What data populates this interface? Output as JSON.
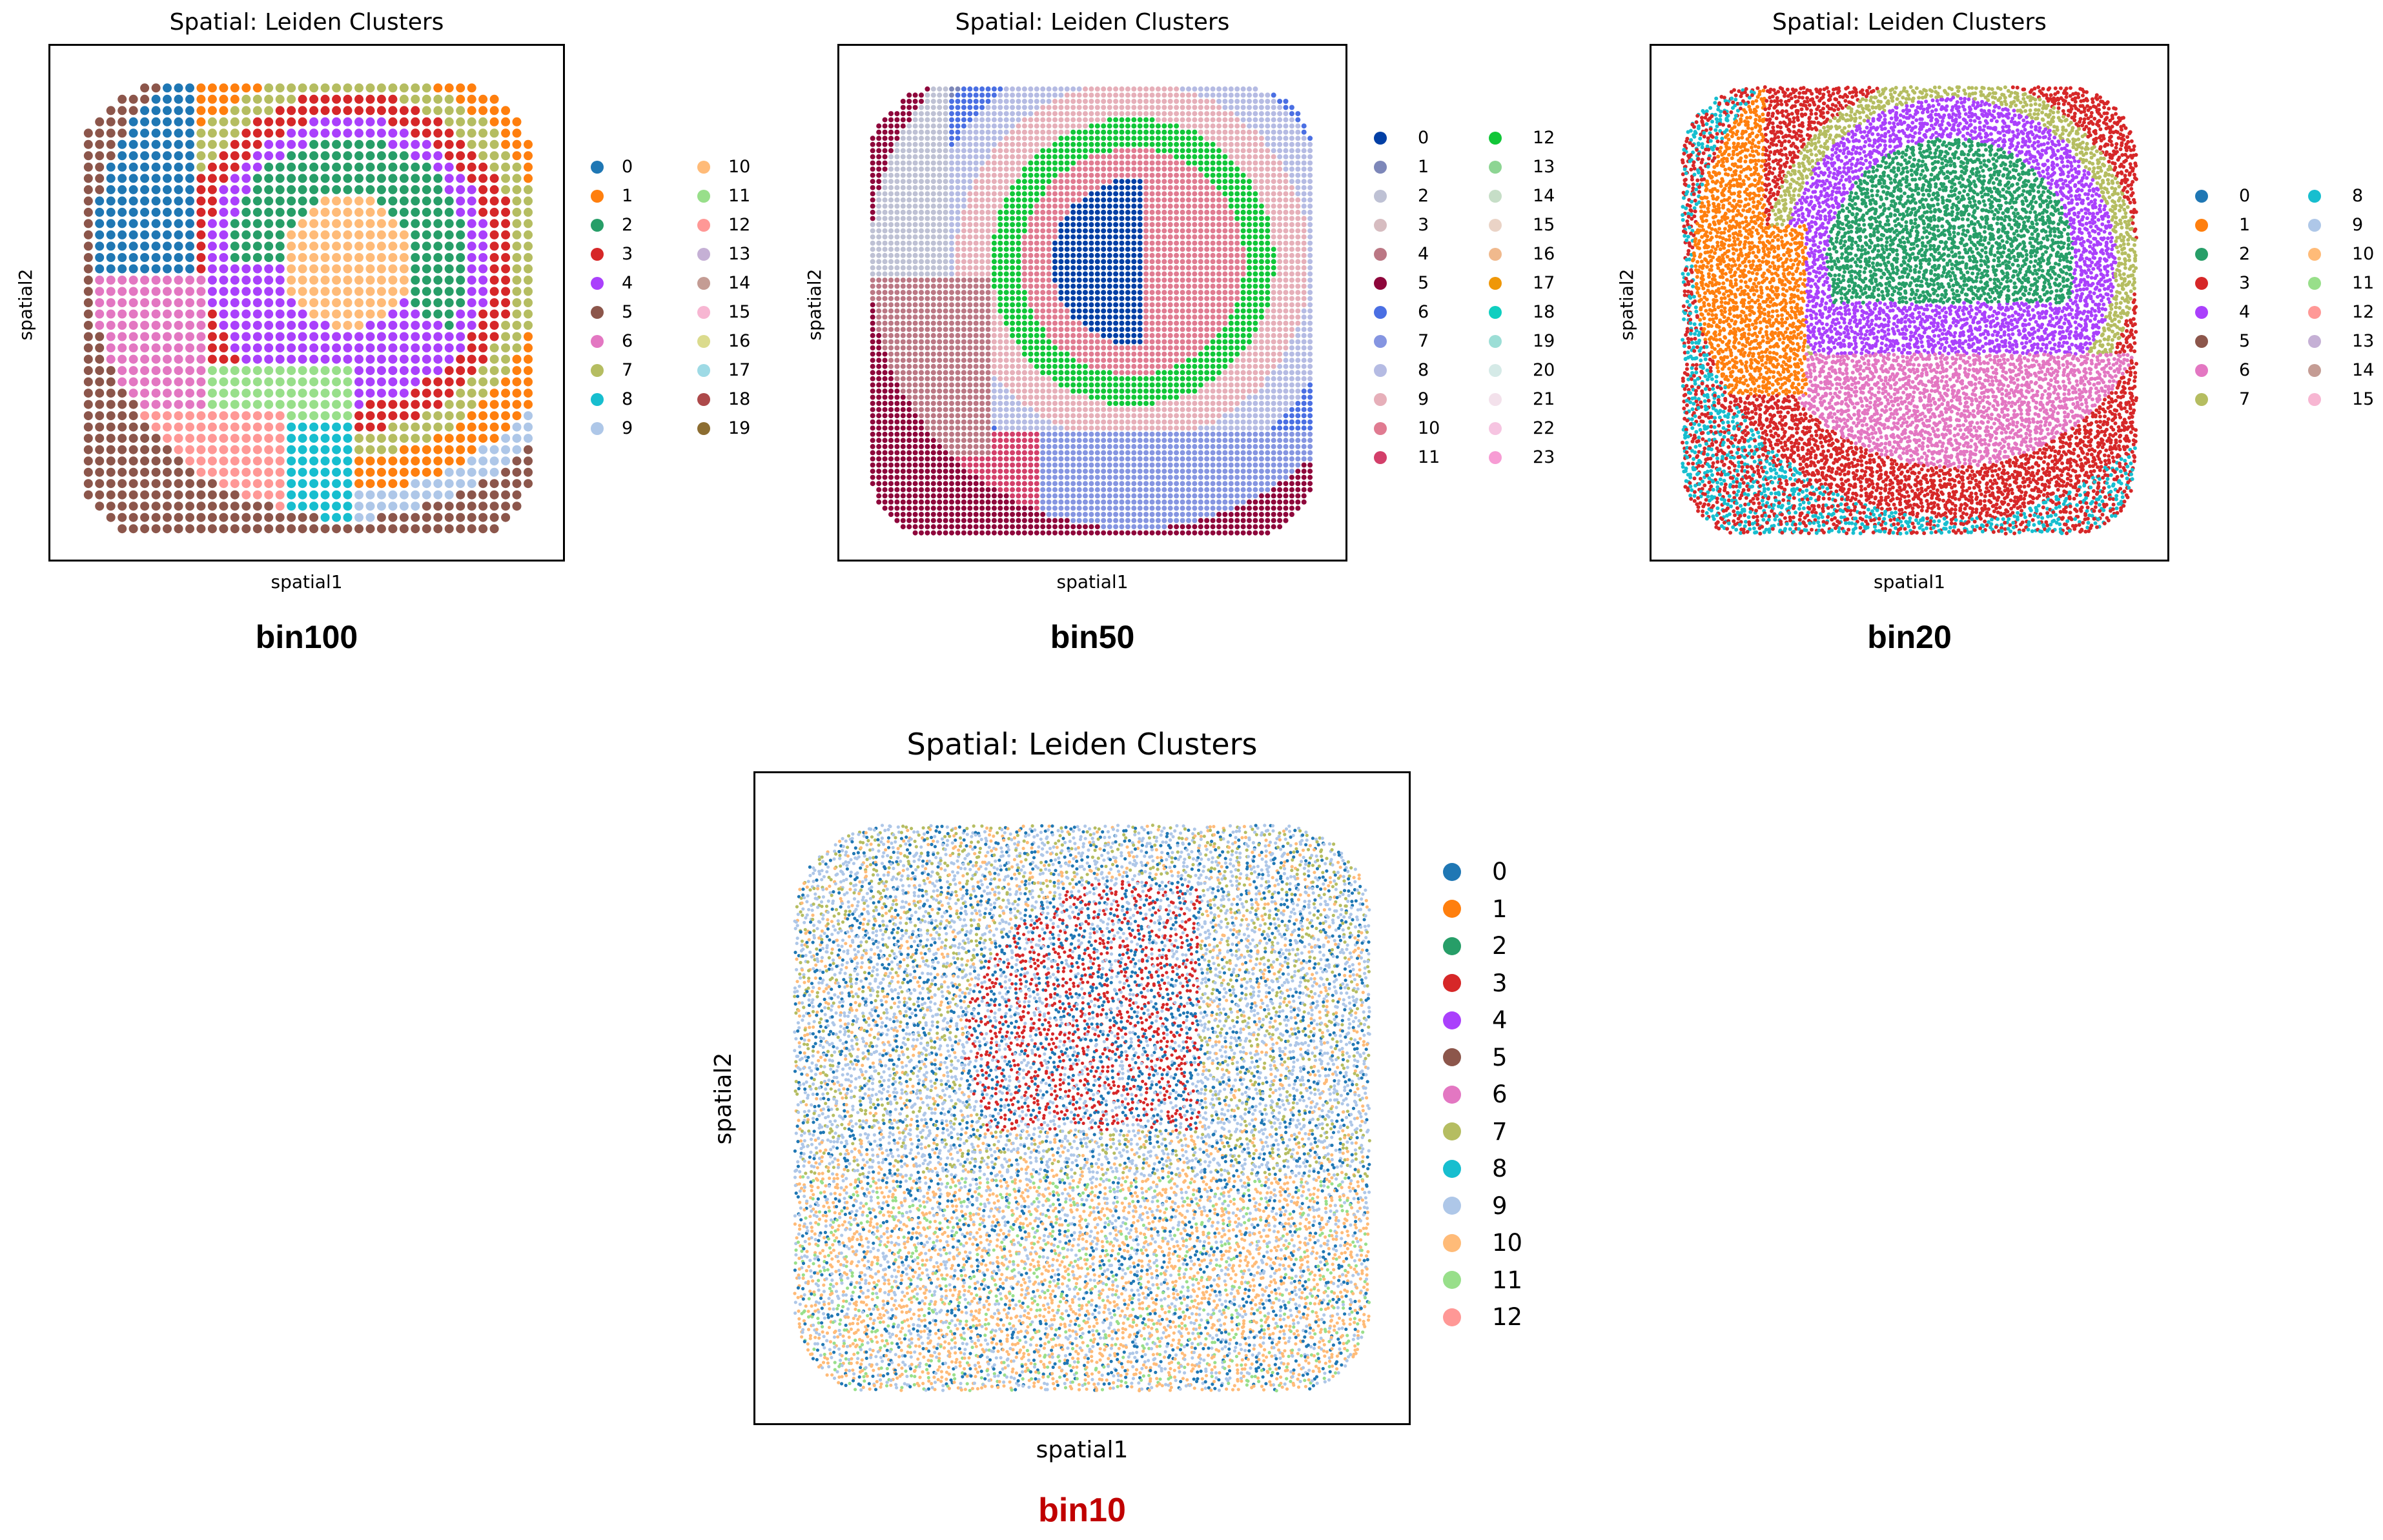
{
  "chart_data": [
    {
      "type": "scatter",
      "title": "Spatial: Leiden Clusters",
      "xlabel": "spatial1",
      "ylabel": "spatial2",
      "caption": "bin100",
      "legend": [
        "0",
        "1",
        "2",
        "3",
        "4",
        "5",
        "6",
        "7",
        "8",
        "9",
        "10",
        "11",
        "12",
        "13",
        "14",
        "15",
        "16",
        "17",
        "18",
        "19"
      ],
      "colors": [
        "#1f77b4",
        "#ff7f0e",
        "#279e68",
        "#d62728",
        "#aa40fc",
        "#8c564b",
        "#e377c2",
        "#b5bd61",
        "#17becf",
        "#aec7e8",
        "#ffbb78",
        "#98df8a",
        "#ff9896",
        "#c5b0d5",
        "#c49c94",
        "#f7b6d2",
        "#dbdb8d",
        "#9edae5",
        "#ad494a",
        "#8c6d31"
      ]
    },
    {
      "type": "scatter",
      "title": "Spatial: Leiden Clusters",
      "xlabel": "spatial1",
      "ylabel": "spatial2",
      "caption": "bin50",
      "legend": [
        "0",
        "1",
        "2",
        "3",
        "4",
        "5",
        "6",
        "7",
        "8",
        "9",
        "10",
        "11",
        "12",
        "13",
        "14",
        "15",
        "16",
        "17",
        "18",
        "19",
        "20",
        "21",
        "22",
        "23"
      ],
      "colors": [
        "#023fa5",
        "#7d87b9",
        "#bec1d4",
        "#d6bcc0",
        "#bb7784",
        "#8e063b",
        "#4a6fe3",
        "#8595e1",
        "#b5bbe3",
        "#e6afb9",
        "#e07b91",
        "#d33f6a",
        "#11c638",
        "#8dd593",
        "#c6dec7",
        "#ead3c6",
        "#f0b98d",
        "#ef9708",
        "#0fcfc0",
        "#9cded6",
        "#d5eae7",
        "#f3e1eb",
        "#f6c4e1",
        "#f79cd4"
      ]
    },
    {
      "type": "scatter",
      "title": "Spatial: Leiden Clusters",
      "xlabel": "spatial1",
      "ylabel": "spatial2",
      "caption": "bin20",
      "legend": [
        "0",
        "1",
        "2",
        "3",
        "4",
        "5",
        "6",
        "7",
        "8",
        "9",
        "10",
        "11",
        "12",
        "13",
        "14",
        "15"
      ],
      "colors": [
        "#1f77b4",
        "#ff7f0e",
        "#279e68",
        "#d62728",
        "#aa40fc",
        "#8c564b",
        "#e377c2",
        "#b5bd61",
        "#17becf",
        "#aec7e8",
        "#ffbb78",
        "#98df8a",
        "#ff9896",
        "#c5b0d5",
        "#c49c94",
        "#f7b6d2"
      ]
    },
    {
      "type": "scatter",
      "title": "Spatial: Leiden Clusters",
      "xlabel": "spatial1",
      "ylabel": "spatial2",
      "caption": "bin10",
      "caption_color": "#c00000",
      "legend": [
        "0",
        "1",
        "2",
        "3",
        "4",
        "5",
        "6",
        "7",
        "8",
        "9",
        "10",
        "11",
        "12"
      ],
      "colors": [
        "#1f77b4",
        "#ff7f0e",
        "#279e68",
        "#d62728",
        "#aa40fc",
        "#8c564b",
        "#e377c2",
        "#b5bd61",
        "#17becf",
        "#aec7e8",
        "#ffbb78",
        "#98df8a",
        "#ff9896"
      ]
    }
  ]
}
